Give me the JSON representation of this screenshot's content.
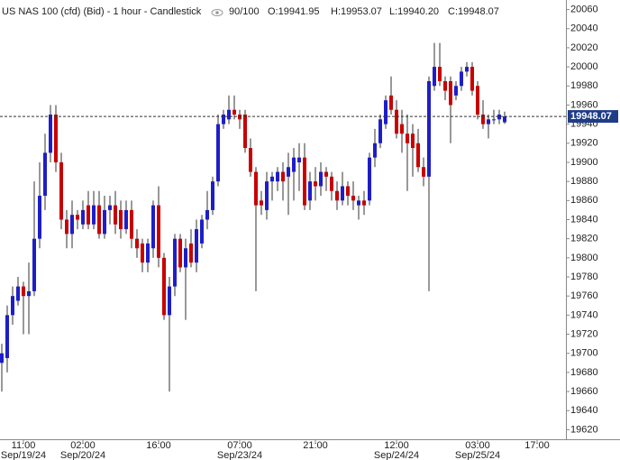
{
  "header": {
    "title": "US NAS 100 (cfd) (Bid) - 1 hour - Candlestick",
    "indicator": "90/100",
    "open": "O:19941.95",
    "high": "H:19953.07",
    "low": "L:19940.20",
    "close": "C:19948.07"
  },
  "chart_data": {
    "type": "candlestick",
    "categories": [
      null,
      null,
      null,
      null,
      "11:00",
      null,
      null,
      null,
      null,
      null,
      null,
      null,
      null,
      null,
      null,
      "02:00",
      null,
      null,
      null,
      null,
      null,
      null,
      null,
      null,
      null,
      null,
      null,
      null,
      null,
      "16:00",
      null,
      null,
      null,
      null,
      null,
      null,
      null,
      null,
      null,
      null,
      null,
      null,
      null,
      null,
      "07:00",
      null,
      null,
      null,
      null,
      null,
      null,
      null,
      null,
      null,
      null,
      null,
      null,
      null,
      "21:00",
      null,
      null,
      null,
      null,
      null,
      null,
      null,
      null,
      null,
      null,
      null,
      null,
      null,
      null,
      "12:00",
      null,
      null,
      null,
      null,
      null,
      null,
      null,
      null,
      null,
      null,
      null,
      null,
      null,
      null,
      "03:00",
      null,
      null,
      null,
      null,
      null,
      null,
      null,
      null,
      null,
      null,
      "17:00"
    ],
    "category_dates": [
      null,
      null,
      null,
      null,
      "Sep/19/24",
      null,
      null,
      null,
      null,
      null,
      null,
      null,
      null,
      null,
      null,
      "Sep/20/24",
      null,
      null,
      null,
      null,
      null,
      null,
      null,
      null,
      null,
      null,
      null,
      null,
      null,
      null,
      null,
      null,
      null,
      null,
      null,
      null,
      null,
      null,
      null,
      null,
      null,
      null,
      null,
      null,
      "Sep/23/24",
      null,
      null,
      null,
      null,
      null,
      null,
      null,
      null,
      null,
      null,
      null,
      null,
      null,
      null,
      null,
      null,
      null,
      null,
      null,
      null,
      null,
      null,
      null,
      null,
      null,
      null,
      null,
      null,
      "Sep/24/24",
      null,
      null,
      null,
      null,
      null,
      null,
      null,
      null,
      null,
      null,
      null,
      null,
      null,
      null,
      "Sep/25/24",
      null,
      null,
      null,
      null,
      null,
      null,
      null,
      null,
      null,
      null,
      null
    ],
    "open": [
      19690,
      19695,
      19740,
      19755,
      19770,
      19760,
      19765,
      19820,
      19865,
      19910,
      19950,
      19900,
      19840,
      19825,
      19845,
      19835,
      19855,
      19835,
      19855,
      19825,
      19850,
      19855,
      19850,
      19830,
      19850,
      19820,
      19815,
      19795,
      19810,
      19855,
      19800,
      19740,
      19770,
      19820,
      19790,
      19815,
      19795,
      19815,
      19840,
      19850,
      19880,
      19940,
      19945,
      19955,
      19950,
      19950,
      19915,
      19890,
      19860,
      19850,
      19880,
      19880,
      19890,
      19885,
      19890,
      19900,
      19905,
      19860,
      19880,
      19875,
      19890,
      19885,
      19870,
      19860,
      19875,
      19865,
      19855,
      19860,
      19860,
      19905,
      19920,
      19940,
      19970,
      19955,
      19940,
      19930,
      19930,
      19920,
      19895,
      19885,
      19980,
      20000,
      19985,
      19985,
      19970,
      19980,
      19995,
      20000,
      19980,
      19950,
      19940,
      19945,
      19945,
      19941.95,
      null,
      null,
      null,
      null,
      null,
      null
    ],
    "high": [
      19710,
      19750,
      19770,
      19780,
      19775,
      19795,
      19880,
      19900,
      19930,
      19960,
      19960,
      19910,
      19850,
      19860,
      19850,
      19860,
      19870,
      19870,
      19870,
      19865,
      19865,
      19870,
      19860,
      19860,
      19860,
      19830,
      19820,
      19820,
      19860,
      19875,
      19805,
      19780,
      19825,
      19825,
      19820,
      19830,
      19840,
      19845,
      19870,
      19885,
      19950,
      19955,
      19970,
      19970,
      19955,
      19955,
      19925,
      19895,
      19870,
      19890,
      19890,
      19895,
      19900,
      19910,
      19915,
      19920,
      19920,
      19890,
      19895,
      19900,
      19895,
      19890,
      19880,
      19890,
      19880,
      19880,
      19865,
      19870,
      19910,
      19935,
      19950,
      19970,
      19990,
      19965,
      19955,
      19950,
      19940,
      19935,
      19905,
      19990,
      20025,
      20025,
      19990,
      19990,
      19985,
      20000,
      20005,
      20005,
      19985,
      19965,
      19950,
      19955,
      19955,
      19953.07,
      null,
      null,
      null,
      null,
      null,
      null
    ],
    "low": [
      19660,
      19680,
      19730,
      19750,
      19720,
      19720,
      19760,
      19810,
      19850,
      19900,
      19890,
      19830,
      19810,
      19810,
      19830,
      19830,
      19830,
      19830,
      19820,
      19820,
      19835,
      19825,
      19820,
      19825,
      19810,
      19800,
      19785,
      19785,
      19800,
      19790,
      19735,
      19660,
      19760,
      19785,
      19735,
      19790,
      19785,
      19810,
      19830,
      19845,
      19875,
      19935,
      19940,
      19945,
      19935,
      19910,
      19885,
      19765,
      19845,
      19840,
      19860,
      19870,
      19860,
      19845,
      19860,
      19870,
      19850,
      19850,
      19860,
      19865,
      19870,
      19860,
      19850,
      19855,
      19855,
      19850,
      19840,
      19845,
      19855,
      19895,
      19915,
      19935,
      19950,
      19925,
      19910,
      19870,
      19885,
      19890,
      19875,
      19765,
      19975,
      19980,
      19965,
      19920,
      19965,
      19975,
      19990,
      19970,
      19945,
      19935,
      19925,
      19940,
      19940,
      19940.2,
      null,
      null,
      null,
      null,
      null,
      null
    ],
    "close": [
      19700,
      19740,
      19760,
      19770,
      19760,
      19765,
      19820,
      19865,
      19910,
      19950,
      19900,
      19840,
      19825,
      19845,
      19840,
      19850,
      19835,
      19855,
      19825,
      19850,
      19855,
      19835,
      19830,
      19850,
      19820,
      19810,
      19795,
      19815,
      19855,
      19800,
      19740,
      19770,
      19820,
      19790,
      19810,
      19795,
      19830,
      19840,
      19850,
      19880,
      19940,
      19950,
      19955,
      19950,
      19945,
      19915,
      19890,
      19855,
      19855,
      19880,
      19885,
      19890,
      19880,
      19895,
      19905,
      19905,
      19855,
      19880,
      19875,
      19890,
      19885,
      19870,
      19860,
      19875,
      19865,
      19860,
      19860,
      19855,
      19905,
      19920,
      19945,
      19965,
      19955,
      19930,
      19930,
      19920,
      19915,
      19895,
      19885,
      19985,
      20000,
      19985,
      19975,
      19960,
      19980,
      19995,
      20000,
      19975,
      19950,
      19940,
      19945,
      19945,
      19950,
      19948.07,
      null,
      null,
      null,
      null,
      null,
      null
    ],
    "up_color": "#1e1ec8",
    "down_color": "#c80000",
    "last_price": 19948.07,
    "ylim": [
      19610,
      20070
    ],
    "yticks": [
      19620,
      19640,
      19660,
      19680,
      19700,
      19720,
      19740,
      19760,
      19780,
      19800,
      19820,
      19840,
      19860,
      19880,
      19900,
      19920,
      19940,
      19960,
      19980,
      20000,
      20020,
      20040,
      20060
    ]
  }
}
